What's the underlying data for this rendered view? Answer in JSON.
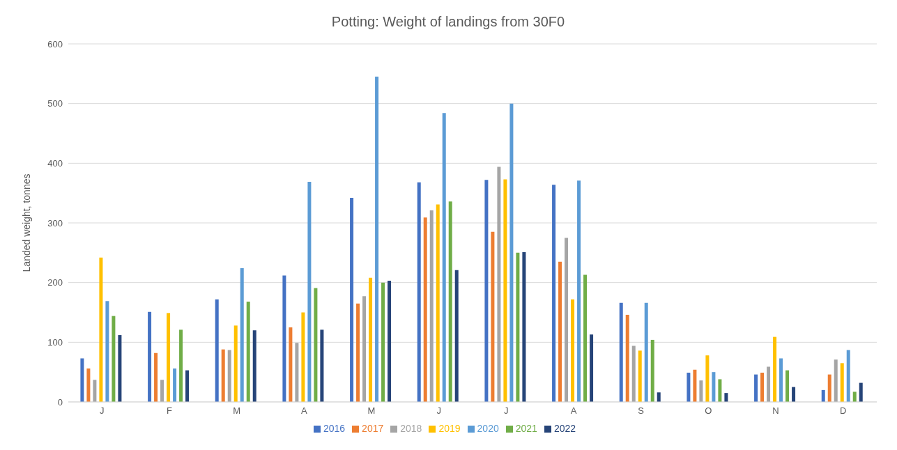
{
  "chart_data": {
    "type": "bar",
    "title": "Potting: Weight of landings from 30F0",
    "ylabel": "Landed weight, tonnes",
    "categories": [
      "J",
      "F",
      "M",
      "A",
      "M",
      "J",
      "J",
      "A",
      "S",
      "O",
      "N",
      "D"
    ],
    "series": [
      {
        "name": "2016",
        "color": "#4472c4",
        "values": [
          73,
          151,
          172,
          212,
          342,
          368,
          372,
          364,
          166,
          49,
          46,
          20
        ]
      },
      {
        "name": "2017",
        "color": "#ed7d31",
        "values": [
          56,
          82,
          88,
          125,
          165,
          309,
          285,
          235,
          146,
          54,
          49,
          46
        ]
      },
      {
        "name": "2018",
        "color": "#a5a5a5",
        "values": [
          37,
          37,
          87,
          99,
          177,
          321,
          394,
          275,
          94,
          36,
          59,
          71
        ]
      },
      {
        "name": "2019",
        "color": "#ffc000",
        "values": [
          242,
          149,
          128,
          150,
          208,
          331,
          373,
          172,
          86,
          78,
          109,
          65
        ]
      },
      {
        "name": "2020",
        "color": "#5b9bd5",
        "values": [
          169,
          56,
          224,
          369,
          545,
          484,
          500,
          371,
          166,
          50,
          73,
          87
        ]
      },
      {
        "name": "2021",
        "color": "#70ad47",
        "values": [
          144,
          121,
          168,
          191,
          200,
          336,
          250,
          213,
          104,
          38,
          53,
          17
        ]
      },
      {
        "name": "2022",
        "color": "#264478",
        "values": [
          112,
          53,
          120,
          121,
          203,
          221,
          251,
          113,
          16,
          15,
          25,
          32
        ]
      }
    ],
    "ylim": [
      0,
      600
    ],
    "yticks": [
      0,
      100,
      200,
      300,
      400,
      500,
      600
    ],
    "grid": "y",
    "legend": "bottom"
  }
}
